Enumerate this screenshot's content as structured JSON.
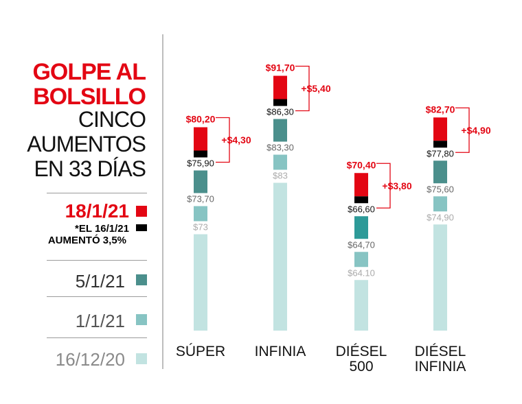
{
  "title": {
    "line1": "GOLPE AL",
    "line2": "BOLSILLO",
    "sub1": "CINCO",
    "sub2": "AUMENTOS",
    "sub3": "EN 33 DÍAS"
  },
  "legend": {
    "d1": "18/1/21",
    "note1": "*EL 16/1/21",
    "note2": "AUMENTÓ 3,5%",
    "d2": "5/1/21",
    "d3": "1/1/21",
    "d4": "16/12/20"
  },
  "colors": {
    "red": "#e30613",
    "black": "#000000",
    "dark_teal": "#4b8f8c",
    "mid_teal": "#87c4c3",
    "light_teal": "#c2e3e1",
    "dark_teal_diesel500": "#2d9a98"
  },
  "chart_data": {
    "type": "bar",
    "categories": [
      "SÚPER",
      "INFINIA",
      "DIÉSEL 500",
      "DIÉSEL INFINIA"
    ],
    "category_lines": [
      [
        "SÚPER"
      ],
      [
        "INFINIA"
      ],
      [
        "DIÉSEL",
        "500"
      ],
      [
        "DIÉSEL",
        "INFINIA"
      ]
    ],
    "series": [
      {
        "name": "16/12/20",
        "values": [
          73,
          83,
          64.1,
          74.9
        ],
        "labels": [
          "$73",
          "$83",
          "$64.10",
          "$74,90"
        ]
      },
      {
        "name": "1/1/21",
        "values": [
          73.7,
          83.3,
          64.7,
          75.6
        ],
        "labels": [
          "$73,70",
          "$83,30",
          "$64,70",
          "$75,60"
        ]
      },
      {
        "name": "5/1/21",
        "values": [
          75.9,
          86.3,
          66.6,
          77.8
        ],
        "labels": [
          "$75,90",
          "$86,30",
          "$66,60",
          "$77,80"
        ]
      },
      {
        "name": "18/1/21",
        "values": [
          80.2,
          91.7,
          70.4,
          82.7
        ],
        "labels": [
          "$80,20",
          "$91,70",
          "$70,40",
          "$82,70"
        ]
      }
    ],
    "increase_labels": [
      "+$4,30",
      "+$5,40",
      "+$3,80",
      "+$4,90"
    ]
  }
}
